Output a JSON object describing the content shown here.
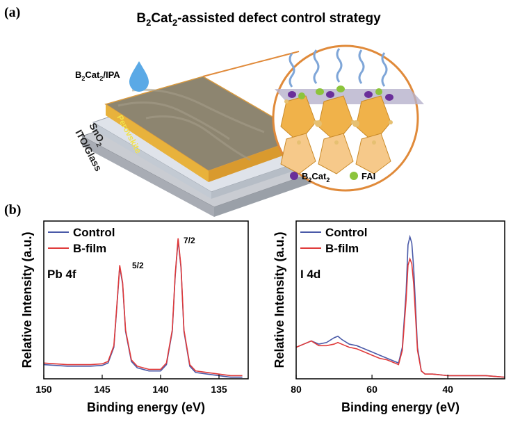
{
  "figure": {
    "panel_a": "(a)",
    "panel_b": "(b)",
    "title_parts": [
      "B",
      "2",
      "Cat",
      "2",
      "-assisted defect control strategy"
    ],
    "solution_parts": [
      "B",
      "2",
      "Cat",
      "2",
      "/IPA"
    ],
    "layer_perovskite": "Perovskite",
    "layer_sno2_parts": [
      "SnO",
      "2"
    ],
    "layer_ito": "ITO/Glass",
    "legend_b2cat2_parts": [
      "B",
      "2",
      "Cat",
      "2"
    ],
    "legend_fai": "FAI"
  },
  "chart_data": [
    {
      "type": "line",
      "xlabel": "Binding energy (eV)",
      "ylabel": "Relative Intensity (a.u.)",
      "annotations": [
        "Pb 4f",
        "5/2",
        "7/2"
      ],
      "xlim": [
        150,
        132.5
      ],
      "xticks": [
        150,
        145,
        140,
        135
      ],
      "ylim": [
        0,
        1
      ],
      "x": [
        150,
        149,
        148,
        147,
        146,
        145,
        144.5,
        144,
        143.75,
        143.5,
        143.25,
        143,
        142.5,
        142,
        141,
        140,
        139.5,
        139,
        138.75,
        138.5,
        138.25,
        138,
        137.5,
        137,
        136,
        135,
        134,
        133
      ],
      "series": [
        {
          "name": "Control",
          "color": "#4a5aa8",
          "values": [
            0.09,
            0.085,
            0.08,
            0.08,
            0.08,
            0.085,
            0.1,
            0.2,
            0.45,
            0.71,
            0.6,
            0.3,
            0.11,
            0.07,
            0.05,
            0.05,
            0.09,
            0.3,
            0.65,
            0.88,
            0.7,
            0.3,
            0.08,
            0.04,
            0.03,
            0.02,
            0.01,
            0.01
          ]
        },
        {
          "name": "B-film",
          "color": "#e03a3a",
          "values": [
            0.1,
            0.095,
            0.09,
            0.09,
            0.09,
            0.095,
            0.11,
            0.21,
            0.46,
            0.72,
            0.61,
            0.31,
            0.12,
            0.08,
            0.06,
            0.06,
            0.1,
            0.31,
            0.66,
            0.89,
            0.71,
            0.31,
            0.09,
            0.05,
            0.04,
            0.03,
            0.02,
            0.02
          ]
        }
      ]
    },
    {
      "type": "line",
      "xlabel": "Binding energy (eV)",
      "ylabel": "Relative Intensity (a.u.)",
      "annotations": [
        "I 4d"
      ],
      "xlim": [
        80,
        25
      ],
      "xticks": [
        80,
        60,
        40
      ],
      "ylim": [
        0,
        1
      ],
      "x": [
        80,
        78,
        76,
        74,
        72,
        70,
        69,
        68,
        66,
        64,
        62,
        60,
        58,
        56,
        54,
        53,
        52,
        51,
        50.5,
        50,
        49.5,
        49,
        48,
        47,
        46,
        44,
        40,
        35,
        30,
        25
      ],
      "series": [
        {
          "name": "Control",
          "color": "#4a5aa8",
          "values": [
            0.2,
            0.22,
            0.24,
            0.22,
            0.23,
            0.26,
            0.27,
            0.25,
            0.22,
            0.21,
            0.19,
            0.17,
            0.15,
            0.13,
            0.11,
            0.1,
            0.2,
            0.55,
            0.85,
            0.9,
            0.86,
            0.7,
            0.2,
            0.05,
            0.03,
            0.03,
            0.02,
            0.02,
            0.02,
            0.01
          ]
        },
        {
          "name": "B-film",
          "color": "#e03a3a",
          "values": [
            0.2,
            0.22,
            0.24,
            0.21,
            0.21,
            0.22,
            0.23,
            0.22,
            0.2,
            0.19,
            0.17,
            0.15,
            0.13,
            0.12,
            0.1,
            0.09,
            0.18,
            0.5,
            0.72,
            0.76,
            0.73,
            0.6,
            0.18,
            0.05,
            0.03,
            0.03,
            0.02,
            0.02,
            0.02,
            0.01
          ]
        }
      ]
    }
  ]
}
